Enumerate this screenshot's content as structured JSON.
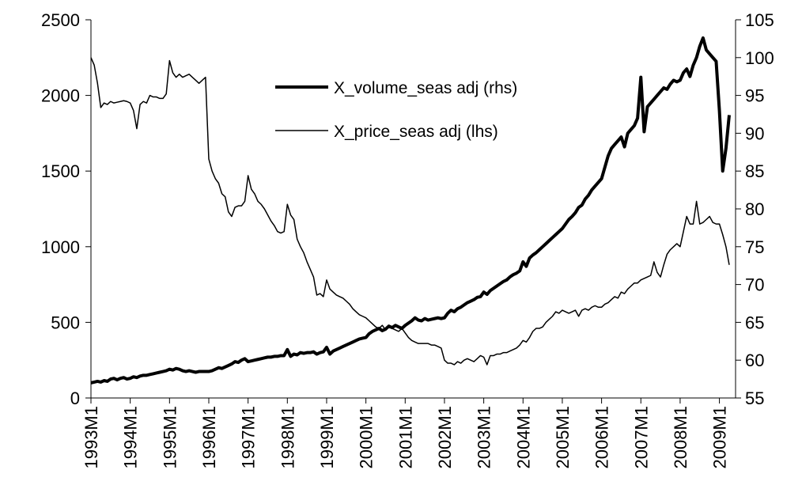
{
  "chart_data": {
    "type": "line",
    "categories": [
      "1993M1",
      null,
      null,
      null,
      null,
      null,
      null,
      null,
      null,
      null,
      null,
      null,
      "1994M1",
      null,
      null,
      null,
      null,
      null,
      null,
      null,
      null,
      null,
      null,
      null,
      "1995M1",
      null,
      null,
      null,
      null,
      null,
      null,
      null,
      null,
      null,
      null,
      null,
      "1996M1",
      null,
      null,
      null,
      null,
      null,
      null,
      null,
      null,
      null,
      null,
      null,
      "1997M1",
      null,
      null,
      null,
      null,
      null,
      null,
      null,
      null,
      null,
      null,
      null,
      "1998M1",
      null,
      null,
      null,
      null,
      null,
      null,
      null,
      null,
      null,
      null,
      null,
      "1999M1",
      null,
      null,
      null,
      null,
      null,
      null,
      null,
      null,
      null,
      null,
      null,
      "2000M1",
      null,
      null,
      null,
      null,
      null,
      null,
      null,
      null,
      null,
      null,
      null,
      "2001M1",
      null,
      null,
      null,
      null,
      null,
      null,
      null,
      null,
      null,
      null,
      null,
      "2002M1",
      null,
      null,
      null,
      null,
      null,
      null,
      null,
      null,
      null,
      null,
      null,
      "2003M1",
      null,
      null,
      null,
      null,
      null,
      null,
      null,
      null,
      null,
      null,
      null,
      "2004M1",
      null,
      null,
      null,
      null,
      null,
      null,
      null,
      null,
      null,
      null,
      null,
      "2005M1",
      null,
      null,
      null,
      null,
      null,
      null,
      null,
      null,
      null,
      null,
      null,
      "2006M1",
      null,
      null,
      null,
      null,
      null,
      null,
      null,
      null,
      null,
      null,
      null,
      "2007M1",
      null,
      null,
      null,
      null,
      null,
      null,
      null,
      null,
      null,
      null,
      null,
      "2008M1",
      null,
      null,
      null,
      null,
      null,
      null,
      null,
      null,
      null,
      null,
      null,
      "2009M1",
      null,
      null,
      null
    ],
    "series": [
      {
        "name": "X_volume_seas adj (rhs)",
        "color": "#000000",
        "width": 4,
        "axis": "y2",
        "values": [
          57,
          57.1,
          57.2,
          57.1,
          57.3,
          57.2,
          57.5,
          57.6,
          57.4,
          57.6,
          57.7,
          57.5,
          57.6,
          57.8,
          57.7,
          57.9,
          58,
          58,
          58.1,
          58.2,
          58.3,
          58.4,
          58.5,
          58.6,
          58.8,
          58.7,
          58.9,
          58.8,
          58.6,
          58.5,
          58.6,
          58.5,
          58.4,
          58.5,
          58.5,
          58.5,
          58.5,
          58.6,
          58.8,
          59,
          58.9,
          59.1,
          59.3,
          59.5,
          59.8,
          59.7,
          60,
          60.2,
          59.8,
          59.9,
          60,
          60.1,
          60.2,
          60.3,
          60.4,
          60.4,
          60.5,
          60.5,
          60.6,
          60.6,
          61.4,
          60.5,
          60.8,
          60.7,
          61,
          60.9,
          61,
          61,
          61.1,
          60.8,
          61,
          61.1,
          61.7,
          60.8,
          61.2,
          61.4,
          61.6,
          61.8,
          62,
          62.2,
          62.4,
          62.6,
          62.8,
          62.9,
          63,
          63.5,
          63.8,
          64,
          64.2,
          63.9,
          64.1,
          64.5,
          64.3,
          64.6,
          64.4,
          64.2,
          64.6,
          64.9,
          65.2,
          65.6,
          65.3,
          65.2,
          65.5,
          65.3,
          65.4,
          65.5,
          65.6,
          65.5,
          65.6,
          66.2,
          66.6,
          66.4,
          66.8,
          67,
          67.3,
          67.6,
          67.8,
          68,
          68.3,
          68.4,
          69,
          68.7,
          69.2,
          69.5,
          69.8,
          70.1,
          70.4,
          70.6,
          71,
          71.3,
          71.5,
          71.8,
          73,
          72.4,
          73.5,
          73.9,
          74.2,
          74.6,
          75,
          75.4,
          75.8,
          76.2,
          76.6,
          77,
          77.4,
          78,
          78.6,
          79,
          79.5,
          80.2,
          80.5,
          81.3,
          81.8,
          82.5,
          83,
          83.5,
          84,
          85.5,
          87,
          88,
          88.5,
          89,
          89.5,
          88.2,
          90,
          90.5,
          91,
          92,
          97.4,
          90.2,
          93.5,
          94,
          94.5,
          95,
          95.5,
          96,
          95.8,
          96.5,
          97,
          96.8,
          97,
          98,
          98.5,
          97.5,
          99,
          100,
          101.5,
          102.6,
          101,
          100.5,
          100,
          99.5,
          93,
          85,
          88,
          92.4
        ]
      },
      {
        "name": "X_price_seas adj (lhs)",
        "color": "#000000",
        "width": 1.5,
        "axis": "y",
        "values": [
          2250,
          2200,
          2080,
          1920,
          1950,
          1940,
          1960,
          1950,
          1955,
          1960,
          1965,
          1960,
          1950,
          1900,
          1780,
          1940,
          1960,
          1950,
          2000,
          1990,
          1990,
          1980,
          1980,
          2010,
          2230,
          2150,
          2120,
          2140,
          2120,
          2130,
          2140,
          2120,
          2100,
          2080,
          2100,
          2120,
          1580,
          1500,
          1450,
          1420,
          1350,
          1330,
          1230,
          1200,
          1260,
          1270,
          1270,
          1300,
          1470,
          1380,
          1350,
          1300,
          1280,
          1250,
          1210,
          1170,
          1140,
          1100,
          1090,
          1100,
          1280,
          1210,
          1180,
          1050,
          1000,
          960,
          900,
          850,
          800,
          680,
          690,
          670,
          780,
          720,
          700,
          680,
          670,
          660,
          640,
          620,
          590,
          570,
          550,
          540,
          530,
          510,
          490,
          470,
          460,
          480,
          450,
          470,
          460,
          450,
          440,
          460,
          430,
          400,
          380,
          370,
          360,
          360,
          360,
          360,
          350,
          350,
          340,
          330,
          250,
          230,
          230,
          220,
          240,
          230,
          250,
          260,
          250,
          240,
          260,
          280,
          270,
          220,
          280,
          280,
          290,
          290,
          300,
          300,
          310,
          320,
          330,
          350,
          380,
          370,
          400,
          440,
          460,
          460,
          470,
          500,
          520,
          540,
          570,
          560,
          580,
          570,
          560,
          570,
          580,
          540,
          580,
          590,
          580,
          600,
          610,
          600,
          600,
          620,
          630,
          650,
          670,
          660,
          700,
          690,
          720,
          740,
          760,
          760,
          780,
          790,
          800,
          810,
          900,
          830,
          800,
          880,
          950,
          980,
          1000,
          1020,
          1000,
          1100,
          1200,
          1150,
          1150,
          1300,
          1150,
          1160,
          1180,
          1200,
          1160,
          1150,
          1150,
          1080,
          1000,
          880
        ]
      }
    ],
    "ylim": [
      0,
      2500
    ],
    "yticks": [
      0,
      500,
      1000,
      1500,
      2000,
      2500
    ],
    "y2lim": [
      55,
      105
    ],
    "y2ticks": [
      55,
      60,
      65,
      70,
      75,
      80,
      85,
      90,
      95,
      100,
      105
    ]
  }
}
